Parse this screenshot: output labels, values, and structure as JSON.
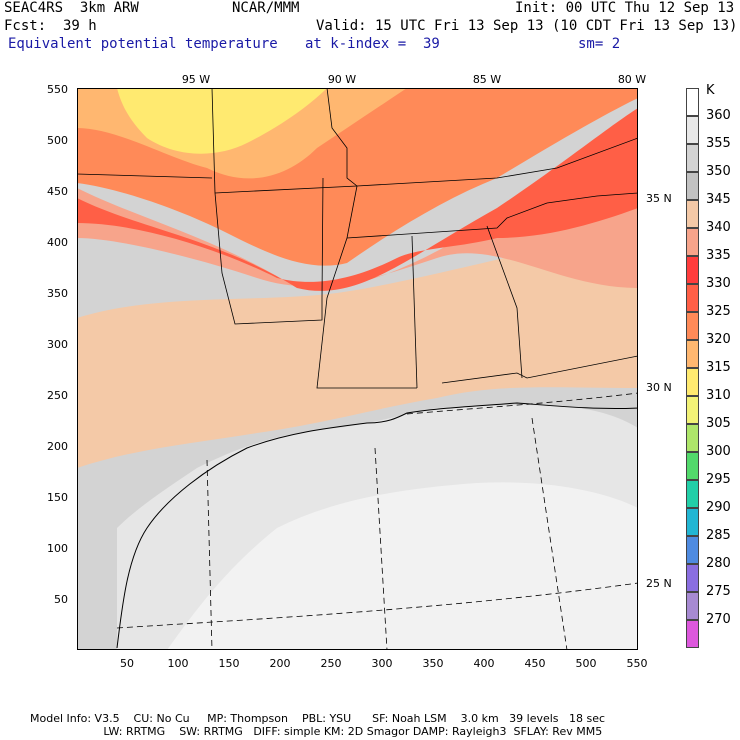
{
  "header": {
    "model": "SEAC4RS  3km ARW",
    "org": "NCAR/MMM",
    "init": "Init: 00 UTC Thu 12 Sep 13",
    "fcst": "Fcst:  39 h",
    "valid": "Valid: 15 UTC Fri 13 Sep 13 (10 CDT Fri 13 Sep 13)",
    "field": "Equivalent potential temperature",
    "level": "at k-index =  39",
    "smooth": "sm= 2"
  },
  "axes": {
    "y_ticks": [
      "550",
      "500",
      "450",
      "400",
      "350",
      "300",
      "250",
      "200",
      "150",
      "100",
      "50"
    ],
    "x_ticks": [
      "50",
      "100",
      "150",
      "200",
      "250",
      "300",
      "350",
      "400",
      "450",
      "500",
      "550"
    ],
    "lon_labels": [
      "95 W",
      "90 W",
      "85 W",
      "80 W"
    ],
    "lat_labels": [
      "35 N",
      "30 N",
      "25 N"
    ]
  },
  "legend": {
    "unit": "K",
    "levels": [
      "360",
      "355",
      "350",
      "345",
      "340",
      "335",
      "330",
      "325",
      "320",
      "315",
      "310",
      "305",
      "300",
      "295",
      "290",
      "285",
      "280",
      "275",
      "270"
    ],
    "colors": [
      "#ffffff",
      "#e8e8e8",
      "#d3d3d3",
      "#c2c2c2",
      "#f4c9a7",
      "#f7a48b",
      "#ff3c3c",
      "#ff5f46",
      "#ff8a58",
      "#ffb770",
      "#ffea70",
      "#f2f277",
      "#aee66a",
      "#52d96b",
      "#22cfa8",
      "#22b6d3",
      "#4f8be0",
      "#8a6ee0",
      "#a78ad2",
      "#dd58dd"
    ]
  },
  "footer": {
    "line1": "Model Info: V3.5    CU: No Cu     MP: Thompson    PBL: YSU      SF: Noah LSM    3.0 km   39 levels   18 sec",
    "line2": "                     LW: RRTMG    SW: RRTMG   DIFF: simple KM: 2D Smagor DAMP: Rayleigh3  SFLAY: Rev MM5"
  }
}
